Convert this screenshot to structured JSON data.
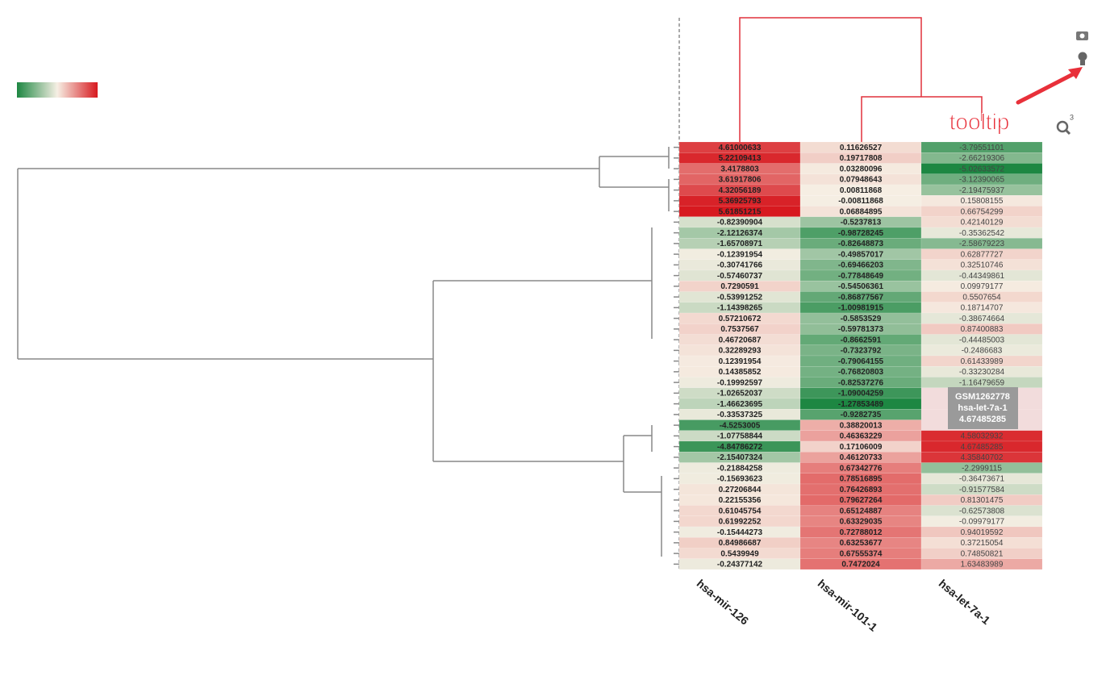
{
  "chart_data": {
    "type": "heatmap",
    "x": [
      "hsa-mir-126",
      "hsa-mir-101-1",
      "hsa-let-7a-1"
    ],
    "values": [
      [
        4.61000633,
        0.11626527,
        -3.79551101
      ],
      [
        5.22109413,
        0.19717808,
        -2.66219306
      ],
      [
        3.4178803,
        0.03280096,
        -5.02633572
      ],
      [
        3.61917806,
        0.07948643,
        -3.12390065
      ],
      [
        4.32056189,
        0.00811868,
        -2.19475937
      ],
      [
        5.36925793,
        -0.00811868,
        0.15808155
      ],
      [
        5.61851215,
        0.06884895,
        0.66754299
      ],
      [
        -0.82390904,
        -0.5237813,
        0.42140129
      ],
      [
        -2.12126374,
        -0.98728245,
        -0.35362542
      ],
      [
        -1.65708971,
        -0.82648873,
        -2.58679223
      ],
      [
        -0.12391954,
        -0.49857017,
        0.62877727
      ],
      [
        -0.30741766,
        -0.69466203,
        0.32510746
      ],
      [
        -0.57460737,
        -0.77848649,
        -0.44349861
      ],
      [
        0.7290591,
        -0.54506361,
        0.09979177
      ],
      [
        -0.53991252,
        -0.86877567,
        0.5507654
      ],
      [
        -1.14398265,
        -1.00981915,
        0.18714707
      ],
      [
        0.57210672,
        -0.5853529,
        -0.38674664
      ],
      [
        0.7537567,
        -0.59781373,
        0.87400883
      ],
      [
        0.46720687,
        -0.8662591,
        -0.44485003
      ],
      [
        0.32289293,
        -0.7323792,
        -0.2486683
      ],
      [
        0.12391954,
        -0.79064155,
        0.61433989
      ],
      [
        0.14385852,
        -0.76820803,
        -0.33230284
      ],
      [
        -0.19992597,
        -0.82537276,
        -1.16479659
      ],
      [
        -1.02652037,
        -1.09004259,
        null
      ],
      [
        -1.46623695,
        -1.27853489,
        null
      ],
      [
        -0.33537325,
        -0.9282735,
        null
      ],
      [
        -4.5253005,
        0.38820013,
        null
      ],
      [
        -1.07758844,
        0.46363229,
        4.58032932
      ],
      [
        -4.84786272,
        0.17106009,
        4.67485285
      ],
      [
        -2.15407324,
        0.46120733,
        4.35840702
      ],
      [
        -0.21884258,
        0.67342776,
        -2.2999115
      ],
      [
        -0.15693623,
        0.78516895,
        -0.36473671
      ],
      [
        0.27206844,
        0.76426893,
        -0.91577584
      ],
      [
        0.22155356,
        0.79627264,
        0.81301475
      ],
      [
        0.61045754,
        0.65124887,
        -0.62573808
      ],
      [
        0.61992252,
        0.63329035,
        -0.09979177
      ],
      [
        -0.15444273,
        0.72788012,
        0.94019592
      ],
      [
        0.84986687,
        0.63253677,
        0.37215054
      ],
      [
        0.5439949,
        0.67555374,
        0.74850821
      ],
      [
        -0.24377142,
        0.7472024,
        1.63483989
      ]
    ],
    "colorscale": [
      "#1d8742",
      "#f6efe4",
      "#d7191f"
    ],
    "tooltip": {
      "title": "GSM1262778"
    },
    "annotation": "tooltip",
    "zoom_badge": 3
  }
}
